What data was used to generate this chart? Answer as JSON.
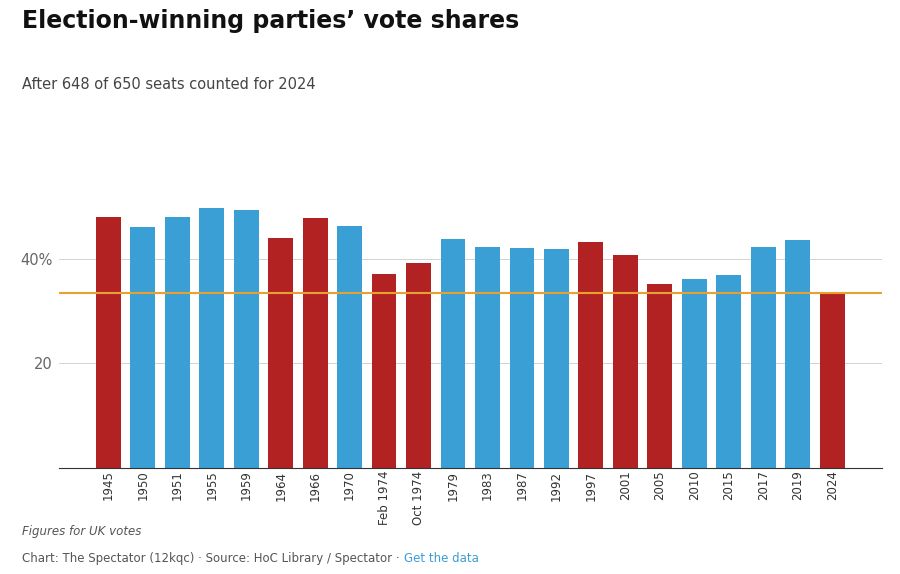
{
  "title": "Election-winning parties’ vote shares",
  "subtitle": "After 648 of 650 seats counted for 2024",
  "footer_italic": "Figures for UK votes",
  "footer_normal": "Chart: The Spectator (12kqc) · Source: HoC Library / Spectator · ",
  "footer_link": "Get the data",
  "years": [
    "1945",
    "1950",
    "1951",
    "1955",
    "1959",
    "1964",
    "1966",
    "1970",
    "Feb 1974",
    "Oct 1974",
    "1979",
    "1983",
    "1987",
    "1992",
    "1997",
    "2001",
    "2005",
    "2010",
    "2015",
    "2017",
    "2019",
    "2024"
  ],
  "values": [
    48.0,
    46.1,
    48.0,
    49.7,
    49.4,
    44.1,
    47.9,
    46.4,
    37.1,
    39.2,
    43.9,
    42.4,
    42.2,
    41.9,
    43.2,
    40.7,
    35.2,
    36.1,
    36.9,
    42.4,
    43.6,
    33.7
  ],
  "colors": [
    "#b22222",
    "#3a9fd4",
    "#3a9fd4",
    "#3a9fd4",
    "#3a9fd4",
    "#b22222",
    "#b22222",
    "#3a9fd4",
    "#b22222",
    "#b22222",
    "#3a9fd4",
    "#3a9fd4",
    "#3a9fd4",
    "#3a9fd4",
    "#b22222",
    "#b22222",
    "#b22222",
    "#3a9fd4",
    "#3a9fd4",
    "#3a9fd4",
    "#3a9fd4",
    "#b22222"
  ],
  "hline_value": 33.5,
  "hline_color": "#e8a030",
  "background_color": "#ffffff",
  "bar_width": 0.72,
  "ylim": [
    0,
    55
  ]
}
